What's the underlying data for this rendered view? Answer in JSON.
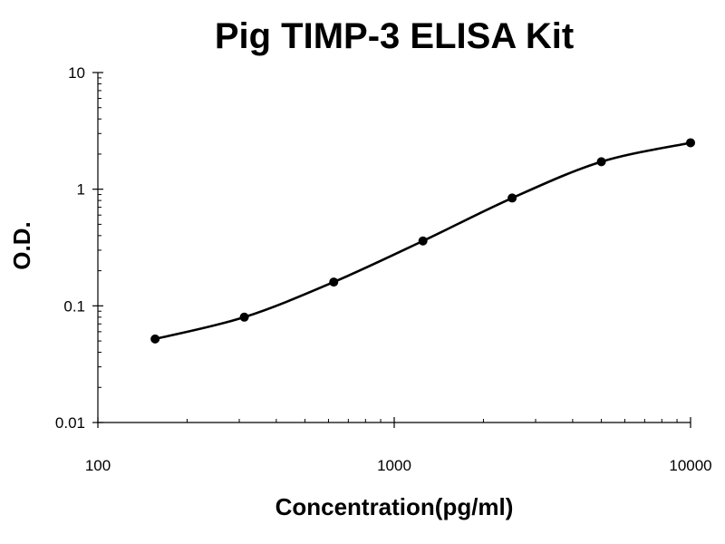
{
  "chart_data": {
    "type": "line",
    "title": "Pig TIMP-3 ELISA Kit",
    "xlabel": "Concentration(pg/ml)",
    "ylabel": "O.D.",
    "x_scale": "log",
    "y_scale": "log",
    "xlim": [
      100,
      10000
    ],
    "ylim": [
      0.01,
      10
    ],
    "x_ticks": [
      {
        "value": 100,
        "label": "100"
      },
      {
        "value": 1000,
        "label": "1000"
      },
      {
        "value": 10000,
        "label": "10000"
      }
    ],
    "y_ticks": [
      {
        "value": 0.01,
        "label": "0.01"
      },
      {
        "value": 0.1,
        "label": "0.1"
      },
      {
        "value": 1,
        "label": "1"
      },
      {
        "value": 10,
        "label": "10"
      }
    ],
    "grid": false,
    "legend": "none",
    "series": [
      {
        "x": [
          156,
          312,
          625,
          1250,
          2500,
          5000,
          10000
        ],
        "y": [
          0.052,
          0.08,
          0.16,
          0.36,
          0.84,
          1.72,
          2.5
        ],
        "color": "#000000",
        "marker": "circle",
        "line": "smoothed"
      }
    ]
  }
}
